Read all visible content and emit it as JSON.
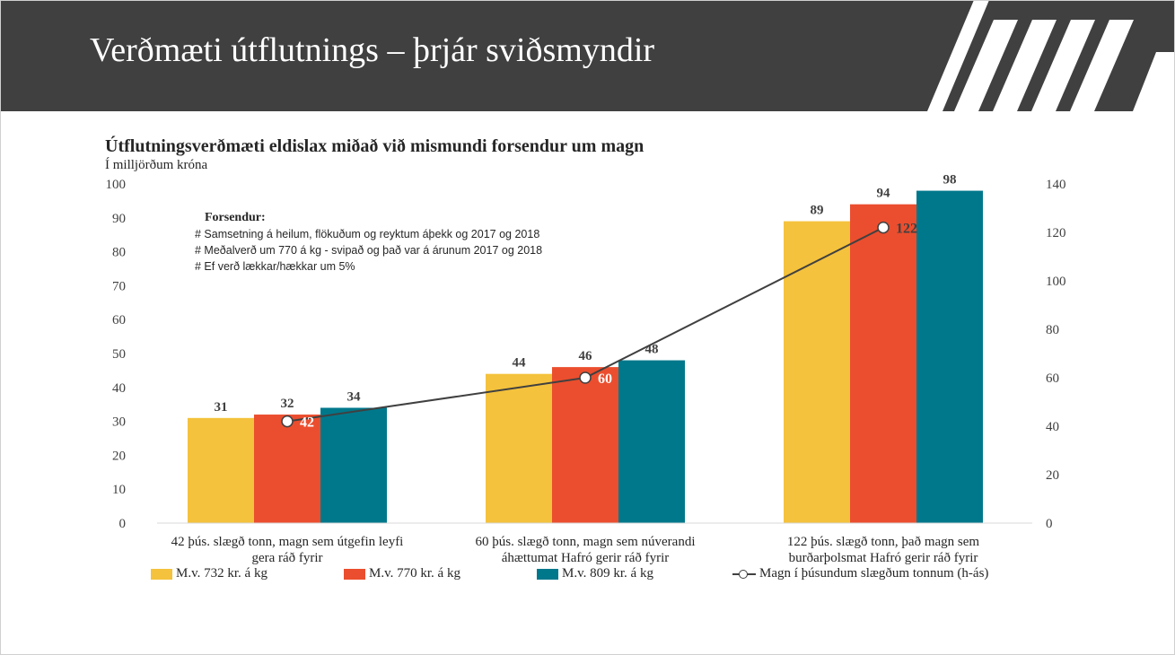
{
  "slide": {
    "title": "Verðmæti útflutnings – þrjár sviðsmyndir"
  },
  "notes": {
    "heading": "Forsendur:",
    "lines": [
      "# Samsetning á heilum, flökuðum og reyktum áþekk og 2017 og 2018",
      "# Meðalverð um 770 á kg - svipað og það var á árunum 2017 og 2018",
      "# Ef verð lækkar/hækkar um 5%"
    ]
  },
  "colors": {
    "header_bg": "#404040",
    "yellow": "#F4C23C",
    "red": "#EB4E2E",
    "teal": "#00788C",
    "line": "#404040"
  },
  "chart_data": {
    "type": "bar",
    "title": "Útflutningsverðmæti eldislax miðað við mismundi forsendur um magn",
    "subtitle": "Í milljörðum króna",
    "categories": [
      [
        "42 þús. slægð tonn, magn sem útgefin leyfi",
        "gera ráð fyrir"
      ],
      [
        "60 þús. slægð tonn, magn sem núverandi",
        "áhættumat Hafró gerir ráð fyrir"
      ],
      [
        "122 þús. slægð tonn,  það magn  sem",
        "burðarþolsmat Hafró gerir ráð fyrir"
      ]
    ],
    "series": [
      {
        "name": "M.v. 732 kr. á kg",
        "values": [
          31,
          44,
          89
        ],
        "color": "#F4C23C",
        "axis": "left"
      },
      {
        "name": "M.v. 770 kr. á kg",
        "values": [
          32,
          46,
          94
        ],
        "color": "#EB4E2E",
        "axis": "left"
      },
      {
        "name": "M.v. 809 kr. á kg",
        "values": [
          34,
          48,
          98
        ],
        "color": "#00788C",
        "axis": "left"
      }
    ],
    "line_series": {
      "name": "Magn í þúsundum slægðum tonnum (h-ás)",
      "values": [
        42,
        60,
        122
      ],
      "color": "#404040",
      "axis": "right"
    },
    "y_left": {
      "min": 0,
      "max": 100,
      "ticks": [
        0,
        10,
        20,
        30,
        40,
        50,
        60,
        70,
        80,
        90,
        100
      ]
    },
    "y_right": {
      "min": 0,
      "max": 140,
      "ticks": [
        0,
        20,
        40,
        60,
        80,
        100,
        120,
        140
      ]
    },
    "grid": false,
    "legend_position": "bottom"
  }
}
